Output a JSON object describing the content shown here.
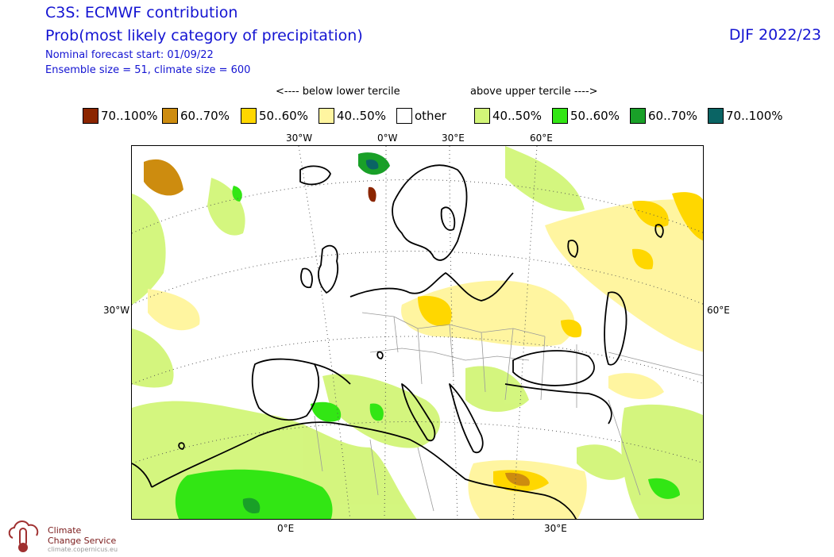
{
  "header": {
    "title": "C3S: ECMWF contribution",
    "subtitle": "Prob(most likely category of precipitation)",
    "forecast_start": "Nominal forecast start: 01/09/22",
    "ensemble": "Ensemble size = 51, climate size = 600",
    "season": "DJF 2022/23"
  },
  "legend": {
    "below_label": "<---- below lower tercile",
    "above_label": "above upper tercile ---->",
    "items": [
      {
        "label": "70..100%",
        "color": "#8b2500"
      },
      {
        "label": "60..70%",
        "color": "#cd8c0f"
      },
      {
        "label": "50..60%",
        "color": "#ffd700"
      },
      {
        "label": "40..50%",
        "color": "#fff5a0"
      },
      {
        "label": "other",
        "color": "#ffffff"
      },
      {
        "label": "40..50%",
        "color": "#d2f578"
      },
      {
        "label": "50..60%",
        "color": "#32e614"
      },
      {
        "label": "60..70%",
        "color": "#19a028"
      },
      {
        "label": "70..100%",
        "color": "#0a6464"
      }
    ]
  },
  "map": {
    "lon_labels_top": [
      "30°W",
      "0°W",
      "30°E",
      "60°E"
    ],
    "lon_labels_bottom": [
      "0°E",
      "30°E"
    ],
    "lat_left": "30°W",
    "lat_right": "60°E"
  },
  "logo": {
    "line1": "Climate",
    "line2": "Change Service",
    "url": "climate.copernicus.eu"
  }
}
